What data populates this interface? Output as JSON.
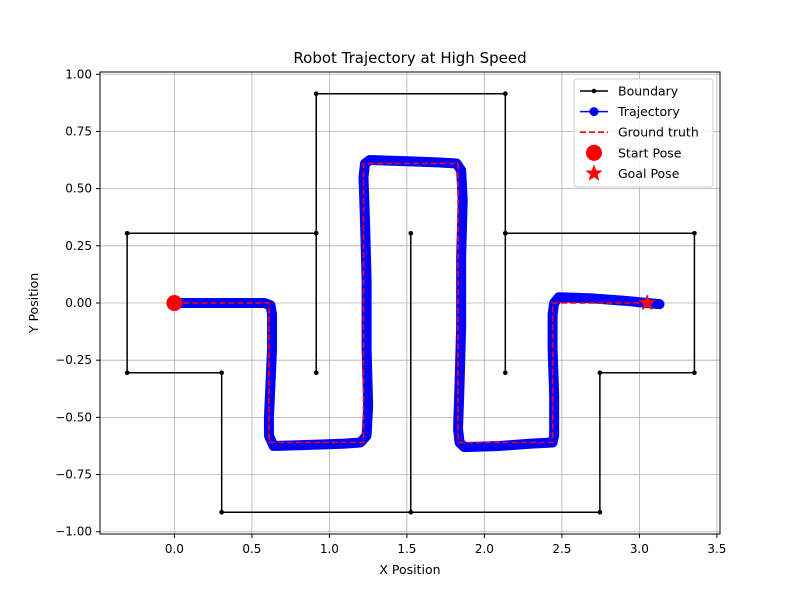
{
  "chart_data": {
    "type": "line",
    "title": "Robot Trajectory at High Speed",
    "xlabel": "X Position",
    "ylabel": "Y Position",
    "xlim": [
      -0.48,
      3.52
    ],
    "ylim": [
      -1.01,
      1.01
    ],
    "xticks": [
      0.0,
      0.5,
      1.0,
      1.5,
      2.0,
      2.5,
      3.0,
      3.5
    ],
    "yticks": [
      -1.0,
      -0.75,
      -0.5,
      -0.25,
      0.0,
      0.25,
      0.5,
      0.75,
      1.0
    ],
    "xtick_labels": [
      "0.0",
      "0.5",
      "1.0",
      "1.5",
      "2.0",
      "2.5",
      "3.0",
      "3.5"
    ],
    "ytick_labels": [
      "−1.00",
      "−0.75",
      "−0.50",
      "−0.25",
      "0.00",
      "0.25",
      "0.50",
      "0.75",
      "1.00"
    ],
    "grid": true,
    "legend_position": "top-right",
    "colors": {
      "boundary": "#000000",
      "trajectory": "#0000ff",
      "ground_truth": "#ff0000",
      "start": "#ff0000",
      "goal": "#ff0000",
      "grid": "#b0b0b0"
    },
    "boundary_segments": [
      [
        [
          -0.305,
          0.305
        ],
        [
          0.915,
          0.305
        ],
        [
          0.915,
          0.915
        ],
        [
          2.135,
          0.915
        ],
        [
          2.135,
          0.305
        ],
        [
          3.355,
          0.305
        ],
        [
          3.355,
          -0.305
        ],
        [
          2.745,
          -0.305
        ],
        [
          2.745,
          -0.915
        ],
        [
          0.305,
          -0.915
        ],
        [
          0.305,
          -0.305
        ],
        [
          -0.305,
          -0.305
        ],
        [
          -0.305,
          0.305
        ]
      ],
      [
        [
          0.915,
          0.305
        ],
        [
          0.915,
          -0.305
        ]
      ],
      [
        [
          2.135,
          0.305
        ],
        [
          2.135,
          -0.305
        ]
      ],
      [
        [
          1.525,
          0.305
        ],
        [
          1.525,
          -0.915
        ]
      ]
    ],
    "ground_truth": [
      [
        0.0,
        0.0
      ],
      [
        0.61,
        0.0
      ],
      [
        0.61,
        -0.61
      ],
      [
        1.22,
        -0.61
      ],
      [
        1.22,
        0.61
      ],
      [
        1.83,
        0.61
      ],
      [
        1.83,
        -0.61
      ],
      [
        2.44,
        -0.61
      ],
      [
        2.44,
        0.0
      ],
      [
        3.05,
        0.0
      ]
    ],
    "trajectory": [
      [
        0.0,
        0.0
      ],
      [
        0.3,
        0.0
      ],
      [
        0.58,
        0.0
      ],
      [
        0.62,
        -0.01
      ],
      [
        0.63,
        -0.05
      ],
      [
        0.63,
        -0.2
      ],
      [
        0.62,
        -0.35
      ],
      [
        0.61,
        -0.5
      ],
      [
        0.61,
        -0.58
      ],
      [
        0.64,
        -0.625
      ],
      [
        0.9,
        -0.62
      ],
      [
        1.1,
        -0.615
      ],
      [
        1.2,
        -0.61
      ],
      [
        1.24,
        -0.58
      ],
      [
        1.25,
        -0.45
      ],
      [
        1.24,
        -0.2
      ],
      [
        1.24,
        0.1
      ],
      [
        1.23,
        0.35
      ],
      [
        1.22,
        0.55
      ],
      [
        1.23,
        0.61
      ],
      [
        1.26,
        0.625
      ],
      [
        1.5,
        0.62
      ],
      [
        1.7,
        0.615
      ],
      [
        1.82,
        0.61
      ],
      [
        1.85,
        0.58
      ],
      [
        1.86,
        0.45
      ],
      [
        1.85,
        0.2
      ],
      [
        1.85,
        -0.1
      ],
      [
        1.84,
        -0.35
      ],
      [
        1.83,
        -0.55
      ],
      [
        1.84,
        -0.61
      ],
      [
        1.87,
        -0.63
      ],
      [
        2.1,
        -0.625
      ],
      [
        2.3,
        -0.615
      ],
      [
        2.44,
        -0.61
      ],
      [
        2.45,
        -0.58
      ],
      [
        2.45,
        -0.4
      ],
      [
        2.44,
        -0.2
      ],
      [
        2.44,
        -0.05
      ],
      [
        2.45,
        0.0
      ],
      [
        2.48,
        0.025
      ],
      [
        2.7,
        0.02
      ],
      [
        2.9,
        0.01
      ],
      [
        3.05,
        0.0
      ],
      [
        3.13,
        -0.005
      ]
    ],
    "start_pose": [
      0.0,
      0.0
    ],
    "goal_pose": [
      3.05,
      0.0
    ],
    "legend": [
      {
        "key": "boundary",
        "label": "Boundary"
      },
      {
        "key": "trajectory",
        "label": "Trajectory"
      },
      {
        "key": "ground_truth",
        "label": "Ground truth"
      },
      {
        "key": "start",
        "label": "Start Pose"
      },
      {
        "key": "goal",
        "label": "Goal Pose"
      }
    ]
  }
}
